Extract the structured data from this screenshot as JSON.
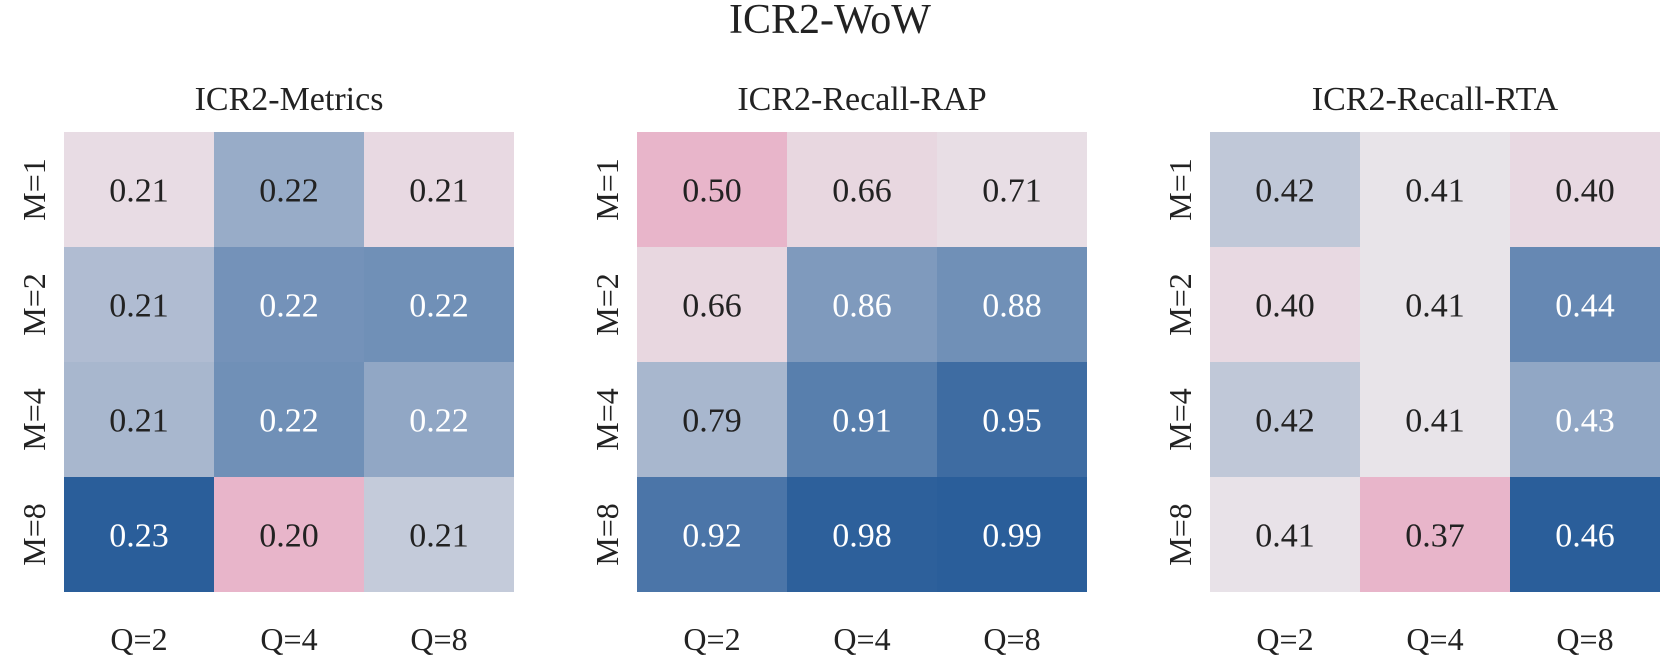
{
  "suptitle": "ICR2-WoW",
  "colors": {
    "low": "#e8b5ca",
    "mid": "#e8e4e9",
    "high": "#2a5e9a"
  },
  "chart_data": [
    {
      "type": "heatmap",
      "title": "ICR2-Metrics",
      "x_tick_labels": [
        "Q=2",
        "Q=4",
        "Q=8"
      ],
      "y_tick_labels": [
        "M=1",
        "M=2",
        "M=4",
        "M=8"
      ],
      "values": [
        [
          0.21,
          0.22,
          0.21
        ],
        [
          0.21,
          0.22,
          0.22
        ],
        [
          0.21,
          0.22,
          0.22
        ],
        [
          0.23,
          0.2,
          0.21
        ]
      ],
      "cell_labels": [
        [
          "0.21",
          "0.22",
          "0.21"
        ],
        [
          "0.21",
          "0.22",
          "0.22"
        ],
        [
          "0.21",
          "0.22",
          "0.22"
        ],
        [
          "0.23",
          "0.20",
          "0.21"
        ]
      ],
      "shade": [
        [
          0.42,
          0.68,
          0.38
        ],
        [
          0.62,
          0.78,
          0.79
        ],
        [
          0.64,
          0.79,
          0.7
        ],
        [
          1.0,
          0.0,
          0.57
        ]
      ]
    },
    {
      "type": "heatmap",
      "title": "ICR2-Recall-RAP",
      "x_tick_labels": [
        "Q=2",
        "Q=4",
        "Q=8"
      ],
      "y_tick_labels": [
        "M=1",
        "M=2",
        "M=4",
        "M=8"
      ],
      "values": [
        [
          0.5,
          0.66,
          0.71
        ],
        [
          0.66,
          0.86,
          0.88
        ],
        [
          0.79,
          0.91,
          0.95
        ],
        [
          0.92,
          0.98,
          0.99
        ]
      ],
      "cell_labels": [
        [
          "0.50",
          "0.66",
          "0.71"
        ],
        [
          "0.66",
          "0.86",
          "0.88"
        ],
        [
          "0.79",
          "0.91",
          "0.95"
        ],
        [
          "0.92",
          "0.98",
          "0.99"
        ]
      ],
      "shade": [
        [
          0.0,
          0.36,
          0.44
        ],
        [
          0.36,
          0.75,
          0.79
        ],
        [
          0.64,
          0.86,
          0.94
        ],
        [
          0.9,
          0.99,
          1.0
        ]
      ]
    },
    {
      "type": "heatmap",
      "title": "ICR2-Recall-RTA",
      "x_tick_labels": [
        "Q=2",
        "Q=4",
        "Q=8"
      ],
      "y_tick_labels": [
        "M=1",
        "M=2",
        "M=4",
        "M=8"
      ],
      "values": [
        [
          0.42,
          0.41,
          0.4
        ],
        [
          0.4,
          0.41,
          0.44
        ],
        [
          0.42,
          0.41,
          0.43
        ],
        [
          0.41,
          0.37,
          0.46
        ]
      ],
      "cell_labels": [
        [
          "0.42",
          "0.41",
          "0.40"
        ],
        [
          "0.40",
          "0.41",
          "0.44"
        ],
        [
          "0.42",
          "0.41",
          "0.43"
        ],
        [
          "0.41",
          "0.37",
          "0.46"
        ]
      ],
      "shade": [
        [
          0.58,
          0.5,
          0.38
        ],
        [
          0.38,
          0.5,
          0.82
        ],
        [
          0.58,
          0.5,
          0.7
        ],
        [
          0.48,
          0.0,
          1.0
        ]
      ]
    }
  ]
}
